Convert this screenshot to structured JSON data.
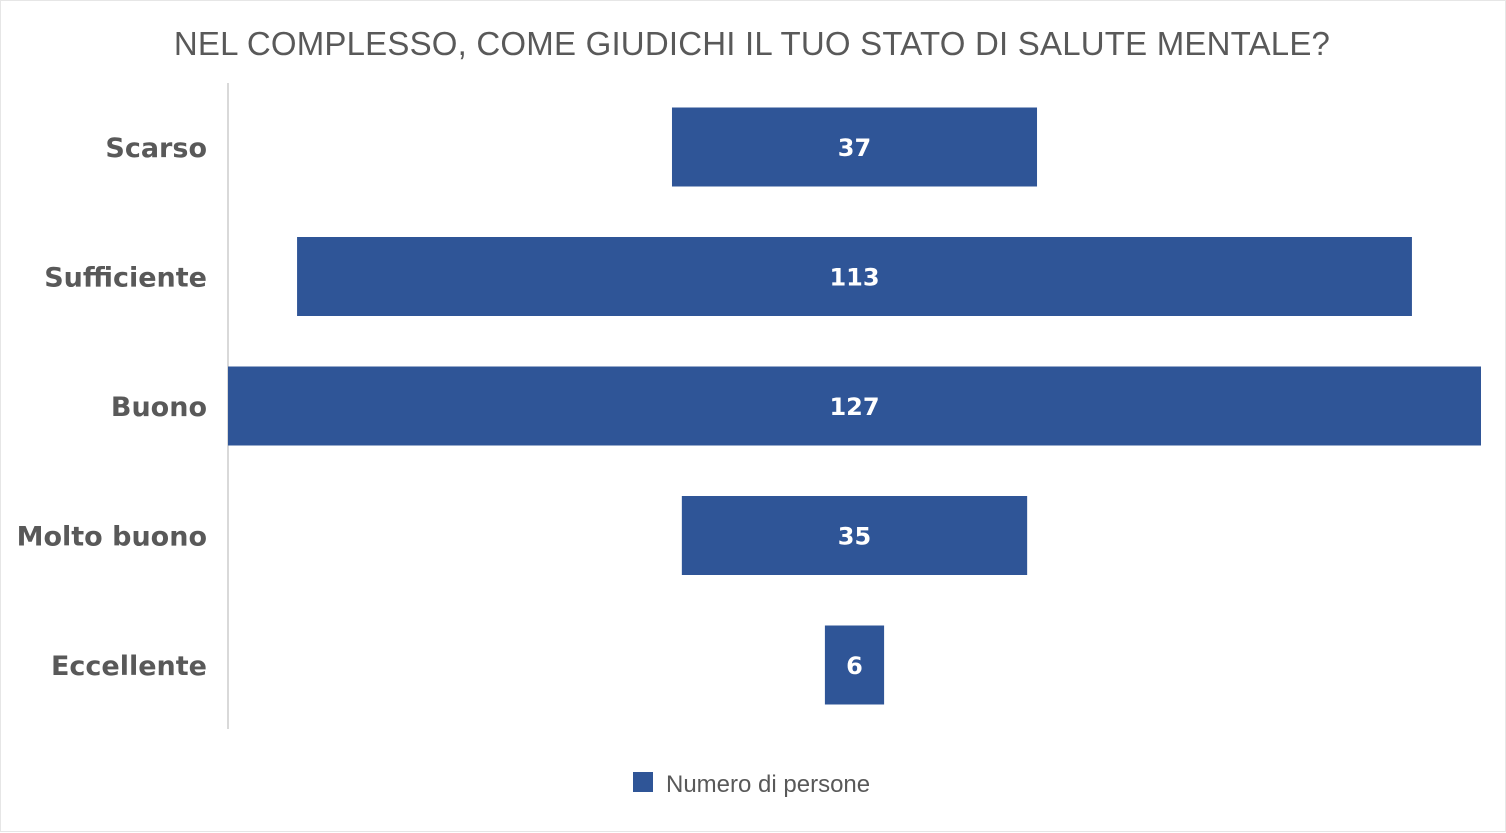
{
  "chart_data": {
    "type": "bar",
    "orientation": "horizontal",
    "layout": "centered-funnel",
    "title": "NEL COMPLESSO, COME GIUDICHI IL TUO STATO DI SALUTE MENTALE?",
    "categories": [
      "Scarso",
      "Sufficiente",
      "Buono",
      "Molto buono",
      "Eccellente"
    ],
    "series": [
      {
        "name": "Numero di persone",
        "values": [
          37,
          113,
          127,
          35,
          6
        ],
        "color": "#2f5597"
      }
    ],
    "data_labels": true,
    "grid": false,
    "legend": {
      "position": "bottom"
    },
    "xlim": [
      0,
      127
    ]
  },
  "colors": {
    "bar": "#2f5597",
    "text": "#595959",
    "axis_line": "#d9d9d9",
    "background": "#ffffff"
  }
}
